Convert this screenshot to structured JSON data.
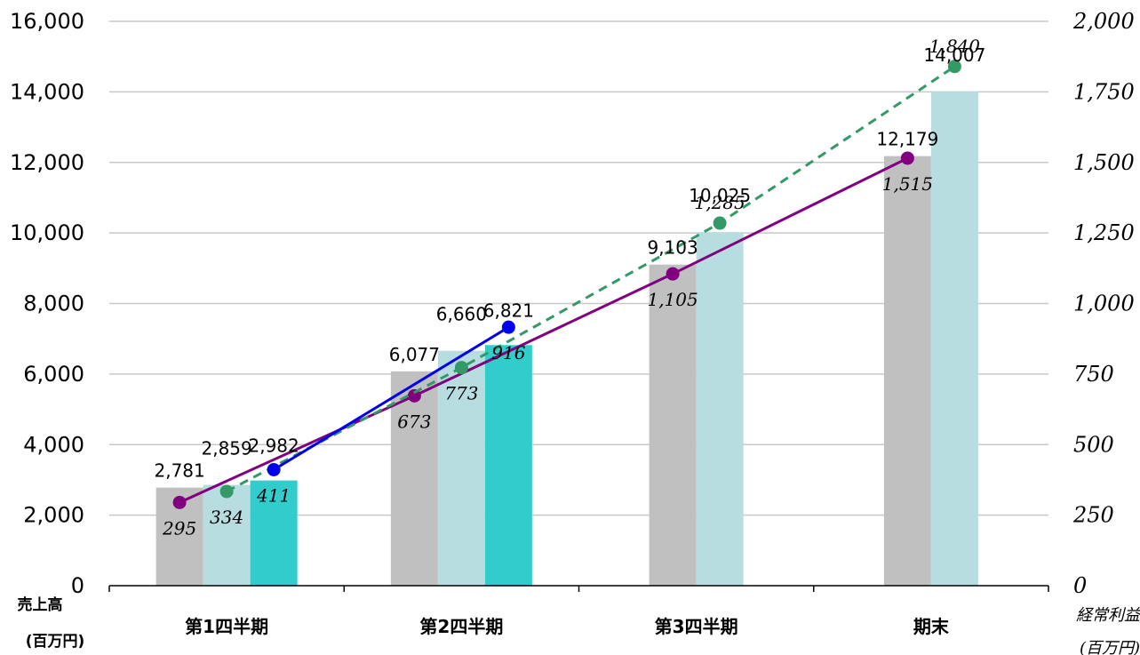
{
  "chart_data": {
    "type": "bar+line",
    "categories": [
      "第1四半期",
      "第2四半期",
      "第3四半期",
      "期末"
    ],
    "left_axis": {
      "title_line1": "売上高",
      "title_line2": "(百万円)",
      "ylim": [
        0,
        16000
      ],
      "ticks": [
        "0",
        "2,000",
        "4,000",
        "6,000",
        "8,000",
        "10,000",
        "12,000",
        "14,000",
        "16,000"
      ]
    },
    "right_axis": {
      "title_line1": "経常利益",
      "title_line2": "(百万円)",
      "ylim": [
        0,
        2000
      ],
      "ticks": [
        "0",
        "250",
        "500",
        "750",
        "1,000",
        "1,250",
        "1,500",
        "1,750",
        "2,000"
      ]
    },
    "bar_series": [
      {
        "values": [
          2781,
          6077,
          9103,
          12179
        ],
        "labels": [
          "2,781",
          "6,077",
          "9,103",
          "12,179"
        ],
        "color": "#c0c0c0"
      },
      {
        "values": [
          2859,
          6660,
          10025,
          14007
        ],
        "labels": [
          "2,859",
          "6,660",
          "10,025",
          "14,007"
        ],
        "color": "#b7dde1"
      },
      {
        "values": [
          2982,
          6821,
          null,
          null
        ],
        "labels": [
          "2,982",
          "6,821",
          "",
          ""
        ],
        "color": "#33cccc"
      }
    ],
    "line_series": [
      {
        "values": [
          295,
          673,
          1105,
          1515
        ],
        "labels": [
          "295",
          "673",
          "1,105",
          "1,515"
        ],
        "color": "#800080",
        "dash": false
      },
      {
        "values": [
          334,
          773,
          1285,
          1840
        ],
        "labels": [
          "334",
          "773",
          "1,285",
          "1,840"
        ],
        "color": "#339966",
        "dash": true
      },
      {
        "values": [
          411,
          916,
          null,
          null
        ],
        "labels": [
          "411",
          "916",
          "",
          ""
        ],
        "color": "#0000ee",
        "dash": false
      }
    ],
    "grid": true,
    "legend": "none"
  }
}
